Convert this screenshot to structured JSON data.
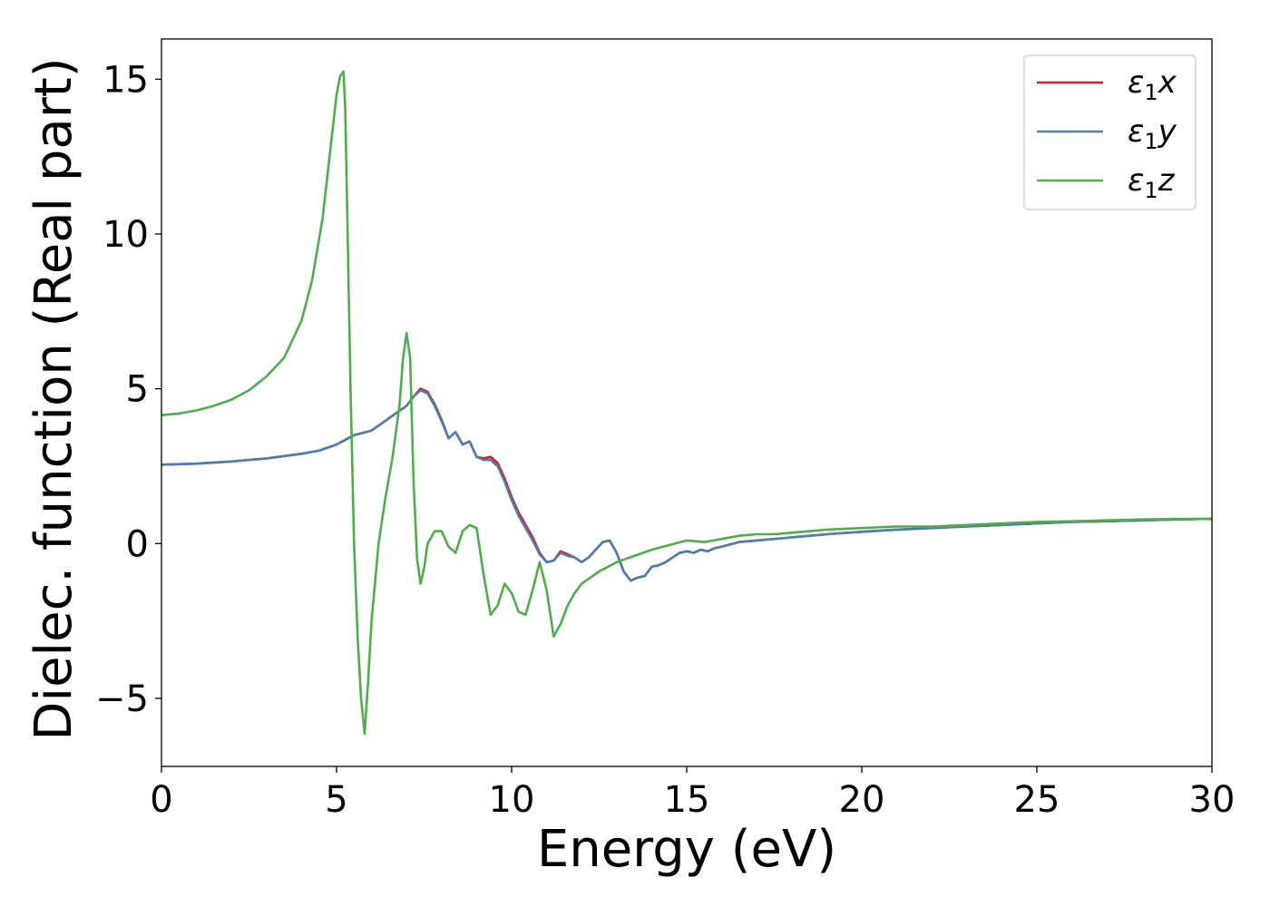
{
  "chart_data": {
    "type": "line",
    "xlabel": "Energy (eV)",
    "ylabel": "Dielec. function (Real part)",
    "xlim": [
      0,
      30
    ],
    "ylim": [
      -7.2,
      16.3
    ],
    "xticks": [
      0,
      5,
      10,
      15,
      20,
      25,
      30
    ],
    "yticks": [
      -5,
      0,
      5,
      10,
      15
    ],
    "ytick_labels": [
      "−5",
      "0",
      "5",
      "10",
      "15"
    ],
    "grid": false,
    "legend_position": "top-right",
    "series": [
      {
        "name": "ε₁x",
        "legend_base": "ε",
        "legend_sub": "1",
        "legend_var": "x",
        "color": "#e41a1c",
        "x": [
          0,
          1,
          2,
          3,
          4,
          4.5,
          5,
          5.5,
          6,
          6.5,
          7,
          7.2,
          7.4,
          7.6,
          7.8,
          8,
          8.2,
          8.4,
          8.6,
          8.8,
          9,
          9.2,
          9.4,
          9.6,
          9.8,
          10,
          10.2,
          10.4,
          10.6,
          10.8,
          11,
          11.2,
          11.4,
          11.6,
          11.8,
          12,
          12.2,
          12.4,
          12.6,
          12.8,
          13,
          13.2,
          13.4,
          13.6,
          13.8,
          14,
          14.2,
          14.4,
          14.6,
          14.8,
          15,
          15.2,
          15.4,
          15.6,
          15.8,
          16,
          16.5,
          17,
          18,
          19,
          20,
          21,
          22,
          23,
          24,
          25,
          26,
          27,
          28,
          29,
          30
        ],
        "y": [
          2.55,
          2.58,
          2.65,
          2.75,
          2.9,
          3.0,
          3.2,
          3.5,
          3.65,
          4.05,
          4.45,
          4.75,
          5.0,
          4.9,
          4.5,
          4.0,
          3.4,
          3.6,
          3.2,
          3.3,
          2.8,
          2.75,
          2.8,
          2.6,
          2.1,
          1.5,
          1.0,
          0.6,
          0.2,
          -0.3,
          -0.6,
          -0.55,
          -0.25,
          -0.35,
          -0.45,
          -0.6,
          -0.45,
          -0.2,
          0.05,
          0.1,
          -0.3,
          -0.9,
          -1.2,
          -1.1,
          -1.05,
          -0.75,
          -0.7,
          -0.6,
          -0.45,
          -0.3,
          -0.25,
          -0.3,
          -0.2,
          -0.25,
          -0.15,
          -0.1,
          0.05,
          0.1,
          0.2,
          0.3,
          0.38,
          0.45,
          0.5,
          0.55,
          0.6,
          0.65,
          0.7,
          0.72,
          0.75,
          0.78,
          0.8
        ]
      },
      {
        "name": "ε₁y",
        "legend_base": "ε",
        "legend_sub": "1",
        "legend_var": "y",
        "color": "#4a7fb5",
        "x": [
          0,
          1,
          2,
          3,
          4,
          4.5,
          5,
          5.5,
          6,
          6.5,
          7,
          7.2,
          7.4,
          7.6,
          7.8,
          8,
          8.2,
          8.4,
          8.6,
          8.8,
          9,
          9.2,
          9.4,
          9.6,
          9.8,
          10,
          10.2,
          10.4,
          10.6,
          10.8,
          11,
          11.2,
          11.4,
          11.6,
          11.8,
          12,
          12.2,
          12.4,
          12.6,
          12.8,
          13,
          13.2,
          13.4,
          13.6,
          13.8,
          14,
          14.2,
          14.4,
          14.6,
          14.8,
          15,
          15.2,
          15.4,
          15.6,
          15.8,
          16,
          16.5,
          17,
          18,
          19,
          20,
          21,
          22,
          23,
          24,
          25,
          26,
          27,
          28,
          29,
          30
        ],
        "y": [
          2.55,
          2.58,
          2.65,
          2.75,
          2.9,
          3.0,
          3.2,
          3.5,
          3.65,
          4.05,
          4.45,
          4.75,
          4.95,
          4.85,
          4.45,
          3.95,
          3.4,
          3.6,
          3.2,
          3.3,
          2.8,
          2.7,
          2.7,
          2.5,
          2.0,
          1.4,
          0.9,
          0.5,
          0.1,
          -0.35,
          -0.6,
          -0.55,
          -0.3,
          -0.4,
          -0.45,
          -0.6,
          -0.45,
          -0.2,
          0.05,
          0.1,
          -0.3,
          -0.9,
          -1.2,
          -1.1,
          -1.05,
          -0.75,
          -0.7,
          -0.6,
          -0.45,
          -0.3,
          -0.25,
          -0.3,
          -0.2,
          -0.25,
          -0.15,
          -0.1,
          0.05,
          0.1,
          0.2,
          0.3,
          0.38,
          0.45,
          0.5,
          0.55,
          0.6,
          0.65,
          0.7,
          0.72,
          0.75,
          0.78,
          0.8
        ]
      },
      {
        "name": "ε₁z",
        "legend_base": "ε",
        "legend_sub": "1",
        "legend_var": "z",
        "color": "#4daf4a",
        "x": [
          0,
          0.5,
          1,
          1.5,
          2,
          2.5,
          3,
          3.5,
          4,
          4.3,
          4.6,
          4.8,
          5,
          5.1,
          5.2,
          5.25,
          5.3,
          5.4,
          5.5,
          5.6,
          5.7,
          5.8,
          5.9,
          6,
          6.2,
          6.4,
          6.6,
          6.8,
          6.9,
          7,
          7.1,
          7.2,
          7.3,
          7.4,
          7.5,
          7.6,
          7.8,
          8,
          8.2,
          8.4,
          8.6,
          8.8,
          9,
          9.2,
          9.4,
          9.6,
          9.8,
          10,
          10.2,
          10.4,
          10.6,
          10.8,
          11,
          11.2,
          11.4,
          11.6,
          11.8,
          12,
          12.5,
          13,
          13.5,
          14,
          14.5,
          15,
          15.5,
          16,
          16.5,
          17,
          17.5,
          18,
          19,
          20,
          21,
          22,
          23,
          24,
          25,
          26,
          27,
          28,
          29,
          30
        ],
        "y": [
          4.15,
          4.2,
          4.3,
          4.45,
          4.65,
          4.95,
          5.4,
          6.0,
          7.2,
          8.5,
          10.5,
          12.5,
          14.5,
          15.1,
          15.25,
          14.0,
          11.0,
          5.0,
          0.0,
          -3.0,
          -5.0,
          -6.15,
          -4.5,
          -2.5,
          0.0,
          1.5,
          2.8,
          4.5,
          6.0,
          6.8,
          6.0,
          2.0,
          -0.5,
          -1.3,
          -0.8,
          0.0,
          0.4,
          0.4,
          -0.1,
          -0.3,
          0.4,
          0.6,
          0.5,
          -1.0,
          -2.3,
          -2.0,
          -1.3,
          -1.6,
          -2.2,
          -2.3,
          -1.5,
          -0.6,
          -1.5,
          -3.0,
          -2.6,
          -2.0,
          -1.6,
          -1.3,
          -0.9,
          -0.6,
          -0.4,
          -0.2,
          -0.05,
          0.1,
          0.05,
          0.15,
          0.25,
          0.3,
          0.3,
          0.35,
          0.45,
          0.5,
          0.55,
          0.55,
          0.6,
          0.65,
          0.7,
          0.72,
          0.75,
          0.78,
          0.8,
          0.8
        ]
      }
    ]
  }
}
